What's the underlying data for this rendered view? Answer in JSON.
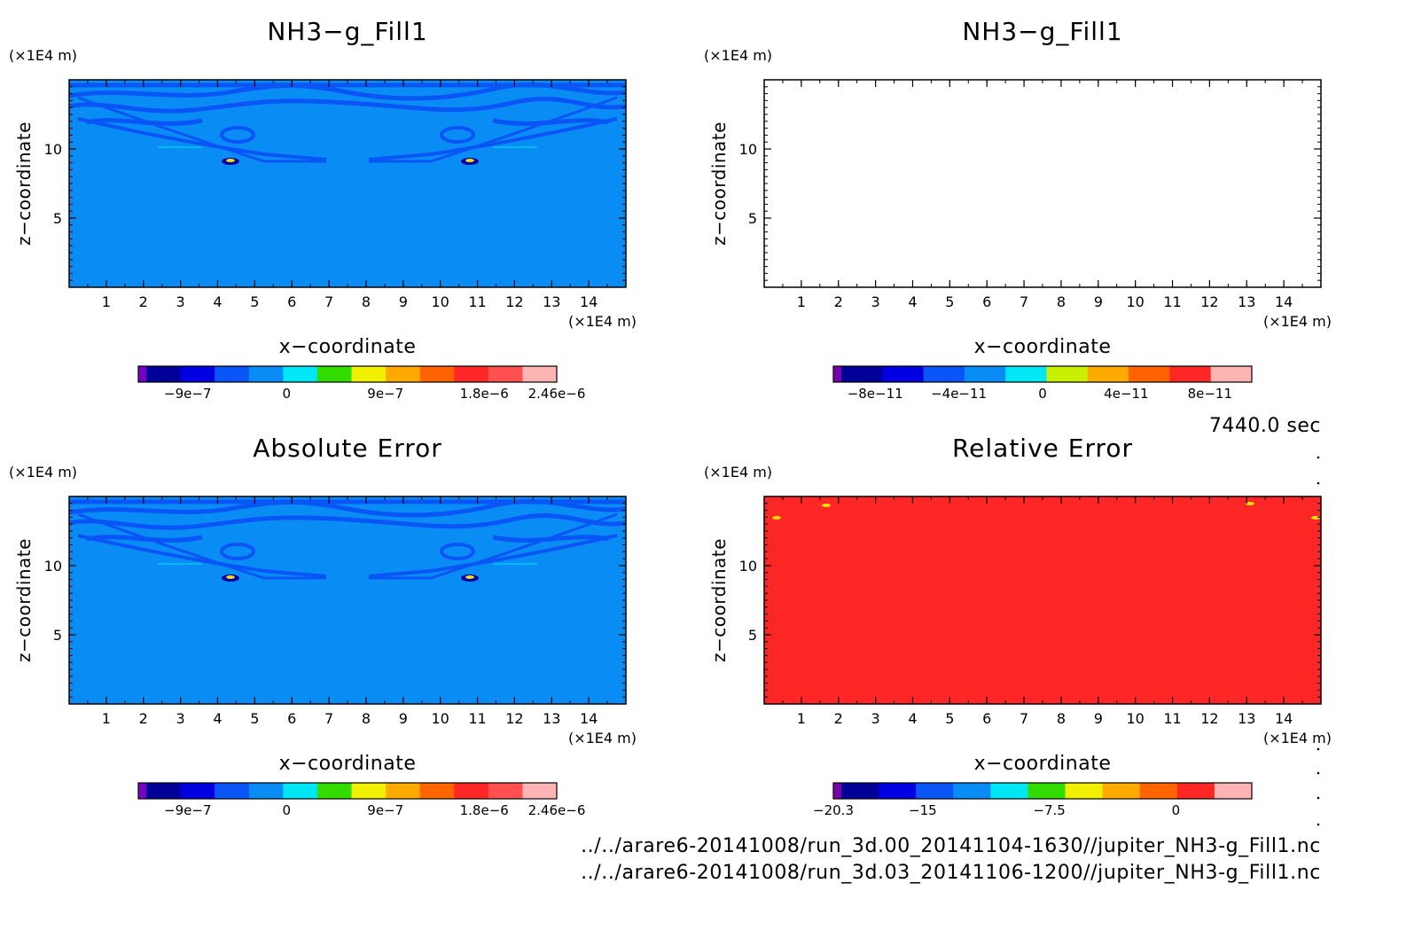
{
  "time_label": "7440.0 sec",
  "files": [
    "../../arare6-20141008/run_3d.00_20141104-1630//jupiter_NH3-g_Fill1.nc",
    "../../arare6-20141008/run_3d.03_20141106-1200//jupiter_NH3-g_Fill1.nc"
  ],
  "colors": {
    "field_background": "#0a8cf5",
    "band_dark": "#0a55f5",
    "relative_error_fill": "#ff2626"
  },
  "chart_data": [
    {
      "type": "heatmap",
      "title": "NH3−g_Fill1",
      "xlabel": "x−coordinate",
      "ylabel": "z−coordinate",
      "x_unit": "(×1E4 m)",
      "y_unit": "(×1E4 m)",
      "xlim": [
        0,
        15
      ],
      "ylim": [
        0,
        15
      ],
      "x_ticks": [
        1,
        2,
        3,
        4,
        5,
        6,
        7,
        8,
        9,
        10,
        11,
        12,
        13,
        14
      ],
      "y_ticks": [
        5,
        10
      ],
      "fill": "field",
      "colorbar": {
        "colors": [
          "#7a00c8",
          "#000099",
          "#0000e0",
          "#0a55f5",
          "#0a8cf5",
          "#00e6f5",
          "#32dc00",
          "#f0f000",
          "#ffaa00",
          "#ff6400",
          "#ff2626",
          "#ff5050",
          "#ffb4b4"
        ],
        "ticks": [
          {
            "label": "−9e−7",
            "value": -9e-07
          },
          {
            "label": "0",
            "value": 0
          },
          {
            "label": "9e−7",
            "value": 9e-07
          },
          {
            "label": "1.8e−6",
            "value": 1.8e-06
          },
          {
            "label": "2.46e−6",
            "value": 2.46e-06
          }
        ],
        "range": [
          -1.35e-06,
          2.46e-06
        ]
      }
    },
    {
      "type": "heatmap",
      "title": "NH3−g_Fill1",
      "xlabel": "x−coordinate",
      "ylabel": "z−coordinate",
      "x_unit": "(×1E4 m)",
      "y_unit": "(×1E4 m)",
      "xlim": [
        0,
        15
      ],
      "ylim": [
        0,
        15
      ],
      "x_ticks": [
        1,
        2,
        3,
        4,
        5,
        6,
        7,
        8,
        9,
        10,
        11,
        12,
        13,
        14
      ],
      "y_ticks": [
        5,
        10
      ],
      "fill": "empty",
      "colorbar": {
        "colors": [
          "#7a00a8",
          "#000099",
          "#0000e0",
          "#0a55f5",
          "#0a8cf5",
          "#00e6f5",
          "#c8f000",
          "#ffaa00",
          "#ff6400",
          "#ff2626",
          "#ffb4b4"
        ],
        "ticks": [
          {
            "label": "−8e−11",
            "value": -8e-11
          },
          {
            "label": "−4e−11",
            "value": -4e-11
          },
          {
            "label": "0",
            "value": 0
          },
          {
            "label": "4e−11",
            "value": 4e-11
          },
          {
            "label": "8e−11",
            "value": 8e-11
          }
        ],
        "range": [
          -1e-10,
          1e-10
        ]
      }
    },
    {
      "type": "heatmap",
      "title": "Absolute Error",
      "xlabel": "x−coordinate",
      "ylabel": "z−coordinate",
      "x_unit": "(×1E4 m)",
      "y_unit": "(×1E4 m)",
      "xlim": [
        0,
        15
      ],
      "ylim": [
        0,
        15
      ],
      "x_ticks": [
        1,
        2,
        3,
        4,
        5,
        6,
        7,
        8,
        9,
        10,
        11,
        12,
        13,
        14
      ],
      "y_ticks": [
        5,
        10
      ],
      "fill": "field",
      "colorbar": {
        "colors": [
          "#7a00c8",
          "#000099",
          "#0000e0",
          "#0a55f5",
          "#0a8cf5",
          "#00e6f5",
          "#32dc00",
          "#f0f000",
          "#ffaa00",
          "#ff6400",
          "#ff2626",
          "#ff5050",
          "#ffb4b4"
        ],
        "ticks": [
          {
            "label": "−9e−7",
            "value": -9e-07
          },
          {
            "label": "0",
            "value": 0
          },
          {
            "label": "9e−7",
            "value": 9e-07
          },
          {
            "label": "1.8e−6",
            "value": 1.8e-06
          },
          {
            "label": "2.46e−6",
            "value": 2.46e-06
          }
        ],
        "range": [
          -1.35e-06,
          2.46e-06
        ]
      }
    },
    {
      "type": "heatmap",
      "title": "Relative Error",
      "xlabel": "x−coordinate",
      "ylabel": "z−coordinate",
      "x_unit": "(×1E4 m)",
      "y_unit": "(×1E4 m)",
      "xlim": [
        0,
        15
      ],
      "ylim": [
        0,
        15
      ],
      "x_ticks": [
        1,
        2,
        3,
        4,
        5,
        6,
        7,
        8,
        9,
        10,
        11,
        12,
        13,
        14
      ],
      "y_ticks": [
        5,
        10
      ],
      "fill": "solid",
      "colorbar": {
        "colors": [
          "#7a00a8",
          "#000099",
          "#0000e0",
          "#0a55f5",
          "#0a8cf5",
          "#00e6f5",
          "#32dc00",
          "#f0f000",
          "#ffaa00",
          "#ff6400",
          "#ff2626",
          "#ffb4b4"
        ],
        "ticks": [
          {
            "label": "−20.3",
            "value": -20.3
          },
          {
            "label": "−15",
            "value": -15
          },
          {
            "label": "−7.5",
            "value": -7.5
          },
          {
            "label": "0",
            "value": 0
          }
        ],
        "range": [
          -20.3,
          4.5
        ]
      }
    }
  ]
}
